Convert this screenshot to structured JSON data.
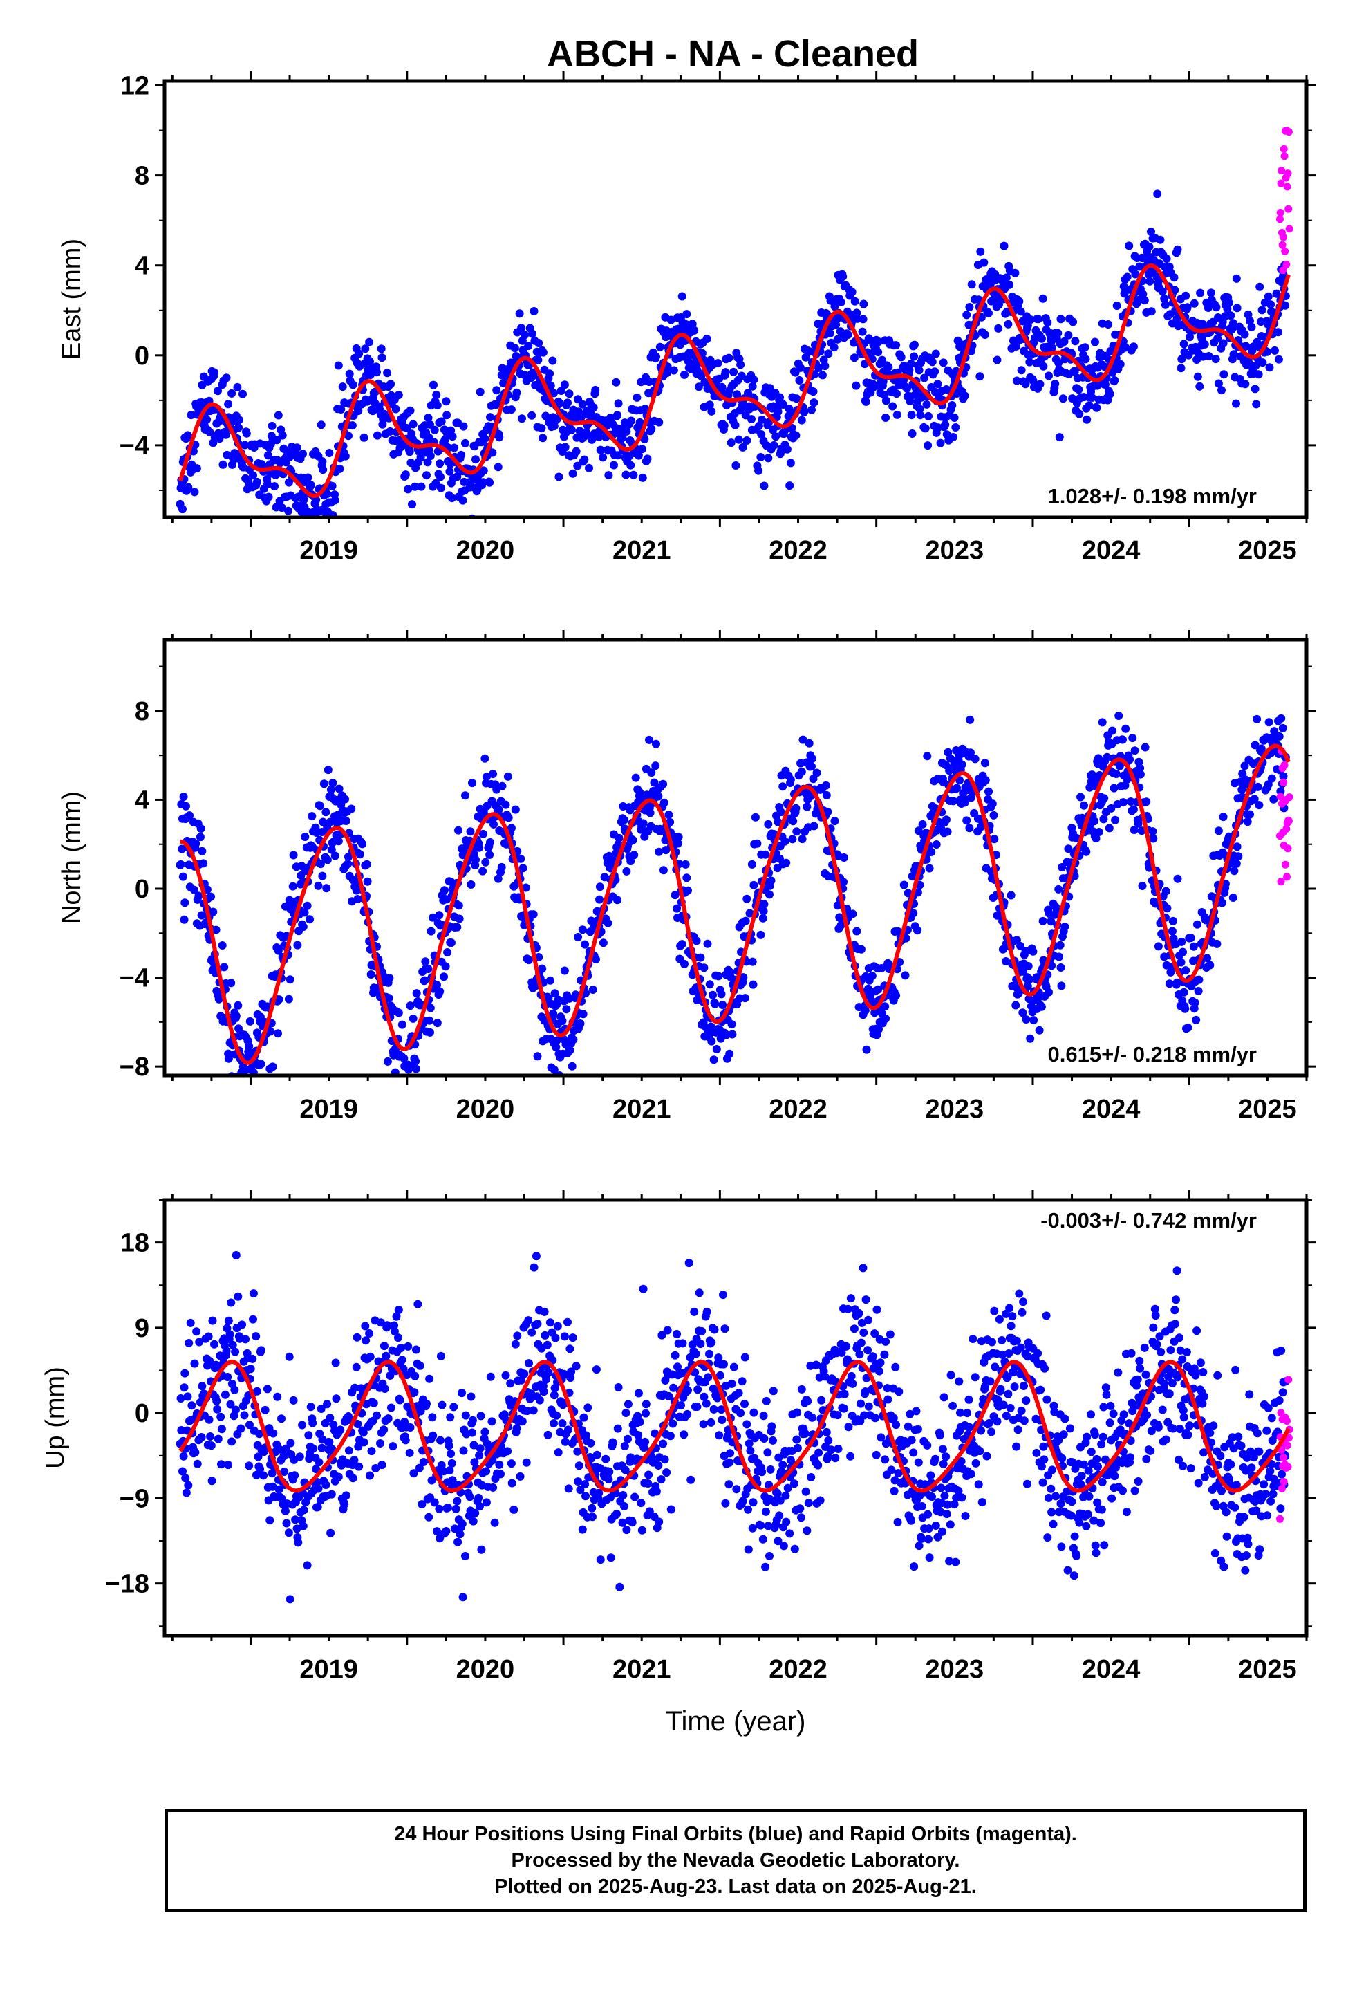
{
  "title": "ABCH  - NA - Cleaned",
  "colors": {
    "final_orbits": "#0000ff",
    "rapid_orbits": "#ff00ff",
    "model": "#ff0000",
    "frame": "#000000"
  },
  "chart_data": [
    {
      "type": "scatter",
      "panel": "east",
      "title": "ABCH  - NA - Cleaned",
      "ylabel": "East (mm)",
      "xlabel": "",
      "xlim": [
        2018.45,
        2025.75
      ],
      "ylim": [
        -7.2,
        12.2
      ],
      "yticks": [
        "12",
        "8",
        "4",
        "0",
        "−4"
      ],
      "ytick_values": [
        12,
        8,
        4,
        0,
        -4
      ],
      "xticks": [
        "2019",
        "2020",
        "2021",
        "2022",
        "2023",
        "2024",
        "2025"
      ],
      "rate_label": "1.028+/- 0.198 mm/yr",
      "grid": false,
      "model": {
        "offset": -1.5,
        "rate": 1.028,
        "annual_amp": 1.9,
        "annual_phase": 0.55,
        "semi_amp": 0.9,
        "semi_phase": 0.1
      },
      "series": [
        {
          "name": "Final Orbits",
          "noise": 1.0,
          "start": 2018.55,
          "end": 2025.62
        },
        {
          "name": "Rapid Orbits",
          "noise": 2.0,
          "start": 2025.58,
          "end": 2025.64,
          "bias": 3.4
        }
      ]
    },
    {
      "type": "scatter",
      "panel": "north",
      "title": "",
      "ylabel": "North (mm)",
      "xlabel": "",
      "xlim": [
        2018.45,
        2025.75
      ],
      "ylim": [
        -8.4,
        11.2
      ],
      "yticks": [
        "8",
        "4",
        "0",
        "−4",
        "−8"
      ],
      "ytick_values": [
        8,
        4,
        0,
        -4,
        -8
      ],
      "xticks": [
        "2019",
        "2020",
        "2021",
        "2022",
        "2023",
        "2024",
        "2025"
      ],
      "rate_label": "0.615+/- 0.218 mm/yr",
      "grid": false,
      "model": {
        "offset": -0.6,
        "rate": 0.615,
        "annual_amp": 5.0,
        "annual_phase": 0.26,
        "semi_amp": 0.6,
        "semi_phase": 0.05
      },
      "series": [
        {
          "name": "Final Orbits",
          "noise": 1.1,
          "start": 2018.55,
          "end": 2025.62
        },
        {
          "name": "Rapid Orbits",
          "noise": 2.4,
          "start": 2025.58,
          "end": 2025.64,
          "bias": -2.5
        }
      ]
    },
    {
      "type": "scatter",
      "panel": "up",
      "title": "",
      "ylabel": "Up (mm)",
      "xlabel": "Time (year)",
      "xlim": [
        2018.45,
        2025.75
      ],
      "ylim": [
        -23.5,
        22.5
      ],
      "yticks": [
        "18",
        "9",
        "0",
        "−9",
        "−18"
      ],
      "ytick_values": [
        18,
        9,
        0,
        -9,
        -18
      ],
      "xticks": [
        "2019",
        "2020",
        "2021",
        "2022",
        "2023",
        "2024",
        "2025"
      ],
      "rate_label": "-0.003+/- 0.742 mm/yr",
      "grid": false,
      "model": {
        "offset": -2.0,
        "rate": -0.003,
        "annual_amp": 6.5,
        "annual_phase": 0.6,
        "semi_amp": 1.2,
        "semi_phase": 0.3
      },
      "series": [
        {
          "name": "Final Orbits",
          "noise": 4.2,
          "start": 2018.55,
          "end": 2025.62
        },
        {
          "name": "Rapid Orbits",
          "noise": 4.0,
          "start": 2025.58,
          "end": 2025.64,
          "bias": 0.0
        }
      ]
    }
  ],
  "caption": {
    "line1": "24 Hour Positions Using Final Orbits (blue) and Rapid Orbits (magenta).",
    "line2": "Processed by the Nevada Geodetic Laboratory.",
    "line3": "Plotted on 2025-Aug-23. Last data on 2025-Aug-21."
  }
}
